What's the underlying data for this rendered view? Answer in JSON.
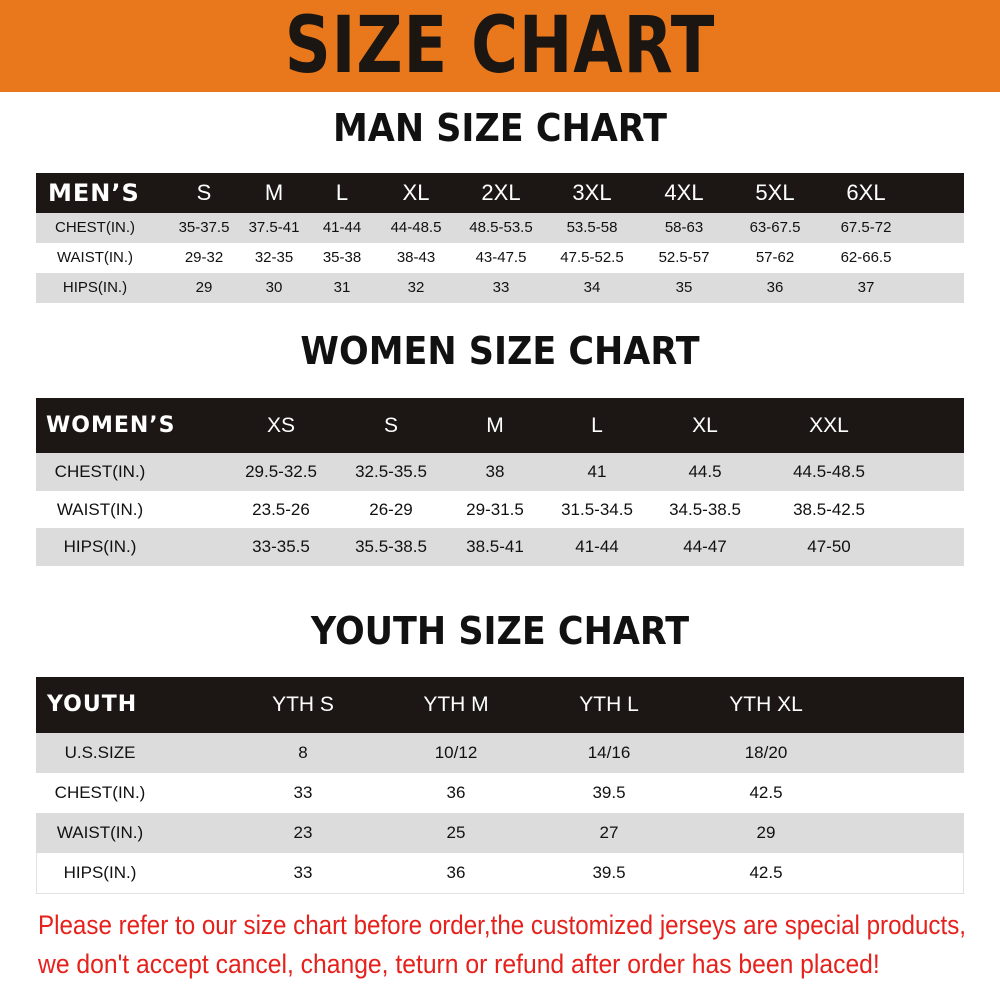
{
  "banner": {
    "title": "SIZE CHART",
    "color": "#e9781c"
  },
  "men": {
    "title": "MAN SIZE CHART",
    "header_label": "MEN’S",
    "sizes": [
      "S",
      "M",
      "L",
      "XL",
      "2XL",
      "3XL",
      "4XL",
      "5XL",
      "6XL"
    ],
    "rows": [
      {
        "label": "CHEST(IN.)",
        "values": [
          "35-37.5",
          "37.5-41",
          "41-44",
          "44-48.5",
          "48.5-53.5",
          "53.5-58",
          "58-63",
          "63-67.5",
          "67.5-72"
        ]
      },
      {
        "label": "WAIST(IN.)",
        "values": [
          "29-32",
          "32-35",
          "35-38",
          "38-43",
          "43-47.5",
          "47.5-52.5",
          "52.5-57",
          "57-62",
          "62-66.5"
        ]
      },
      {
        "label": "HIPS(IN.)",
        "values": [
          "29",
          "30",
          "31",
          "32",
          "33",
          "34",
          "35",
          "36",
          "37"
        ]
      }
    ]
  },
  "women": {
    "title": "WOMEN SIZE CHART",
    "header_label": "WOMEN’S",
    "sizes": [
      "XS",
      "S",
      "M",
      "L",
      "XL",
      "XXL"
    ],
    "rows": [
      {
        "label": "CHEST(IN.)",
        "values": [
          "29.5-32.5",
          "32.5-35.5",
          "38",
          "41",
          "44.5",
          "44.5-48.5"
        ]
      },
      {
        "label": "WAIST(IN.)",
        "values": [
          "23.5-26",
          "26-29",
          "29-31.5",
          "31.5-34.5",
          "34.5-38.5",
          "38.5-42.5"
        ]
      },
      {
        "label": "HIPS(IN.)",
        "values": [
          "33-35.5",
          "35.5-38.5",
          "38.5-41",
          "41-44",
          "44-47",
          "47-50"
        ]
      }
    ]
  },
  "youth": {
    "title": "YOUTH SIZE CHART",
    "header_label": "YOUTH",
    "sizes": [
      "YTH S",
      "YTH M",
      "YTH L",
      "YTH XL"
    ],
    "rows": [
      {
        "label": "U.S.SIZE",
        "values": [
          "8",
          "10/12",
          "14/16",
          "18/20"
        ]
      },
      {
        "label": "CHEST(IN.)",
        "values": [
          "33",
          "36",
          "39.5",
          "42.5"
        ]
      },
      {
        "label": "WAIST(IN.)",
        "values": [
          "23",
          "25",
          "27",
          "29"
        ]
      },
      {
        "label": "HIPS(IN.)",
        "values": [
          "33",
          "36",
          "39.5",
          "42.5"
        ]
      }
    ]
  },
  "notice": {
    "line1": "Please refer to our size chart before order,the customized jerseys are special products,",
    "line2": "we don't accept cancel, change, teturn or refund after order has been placed!",
    "color": "#e6211c"
  }
}
